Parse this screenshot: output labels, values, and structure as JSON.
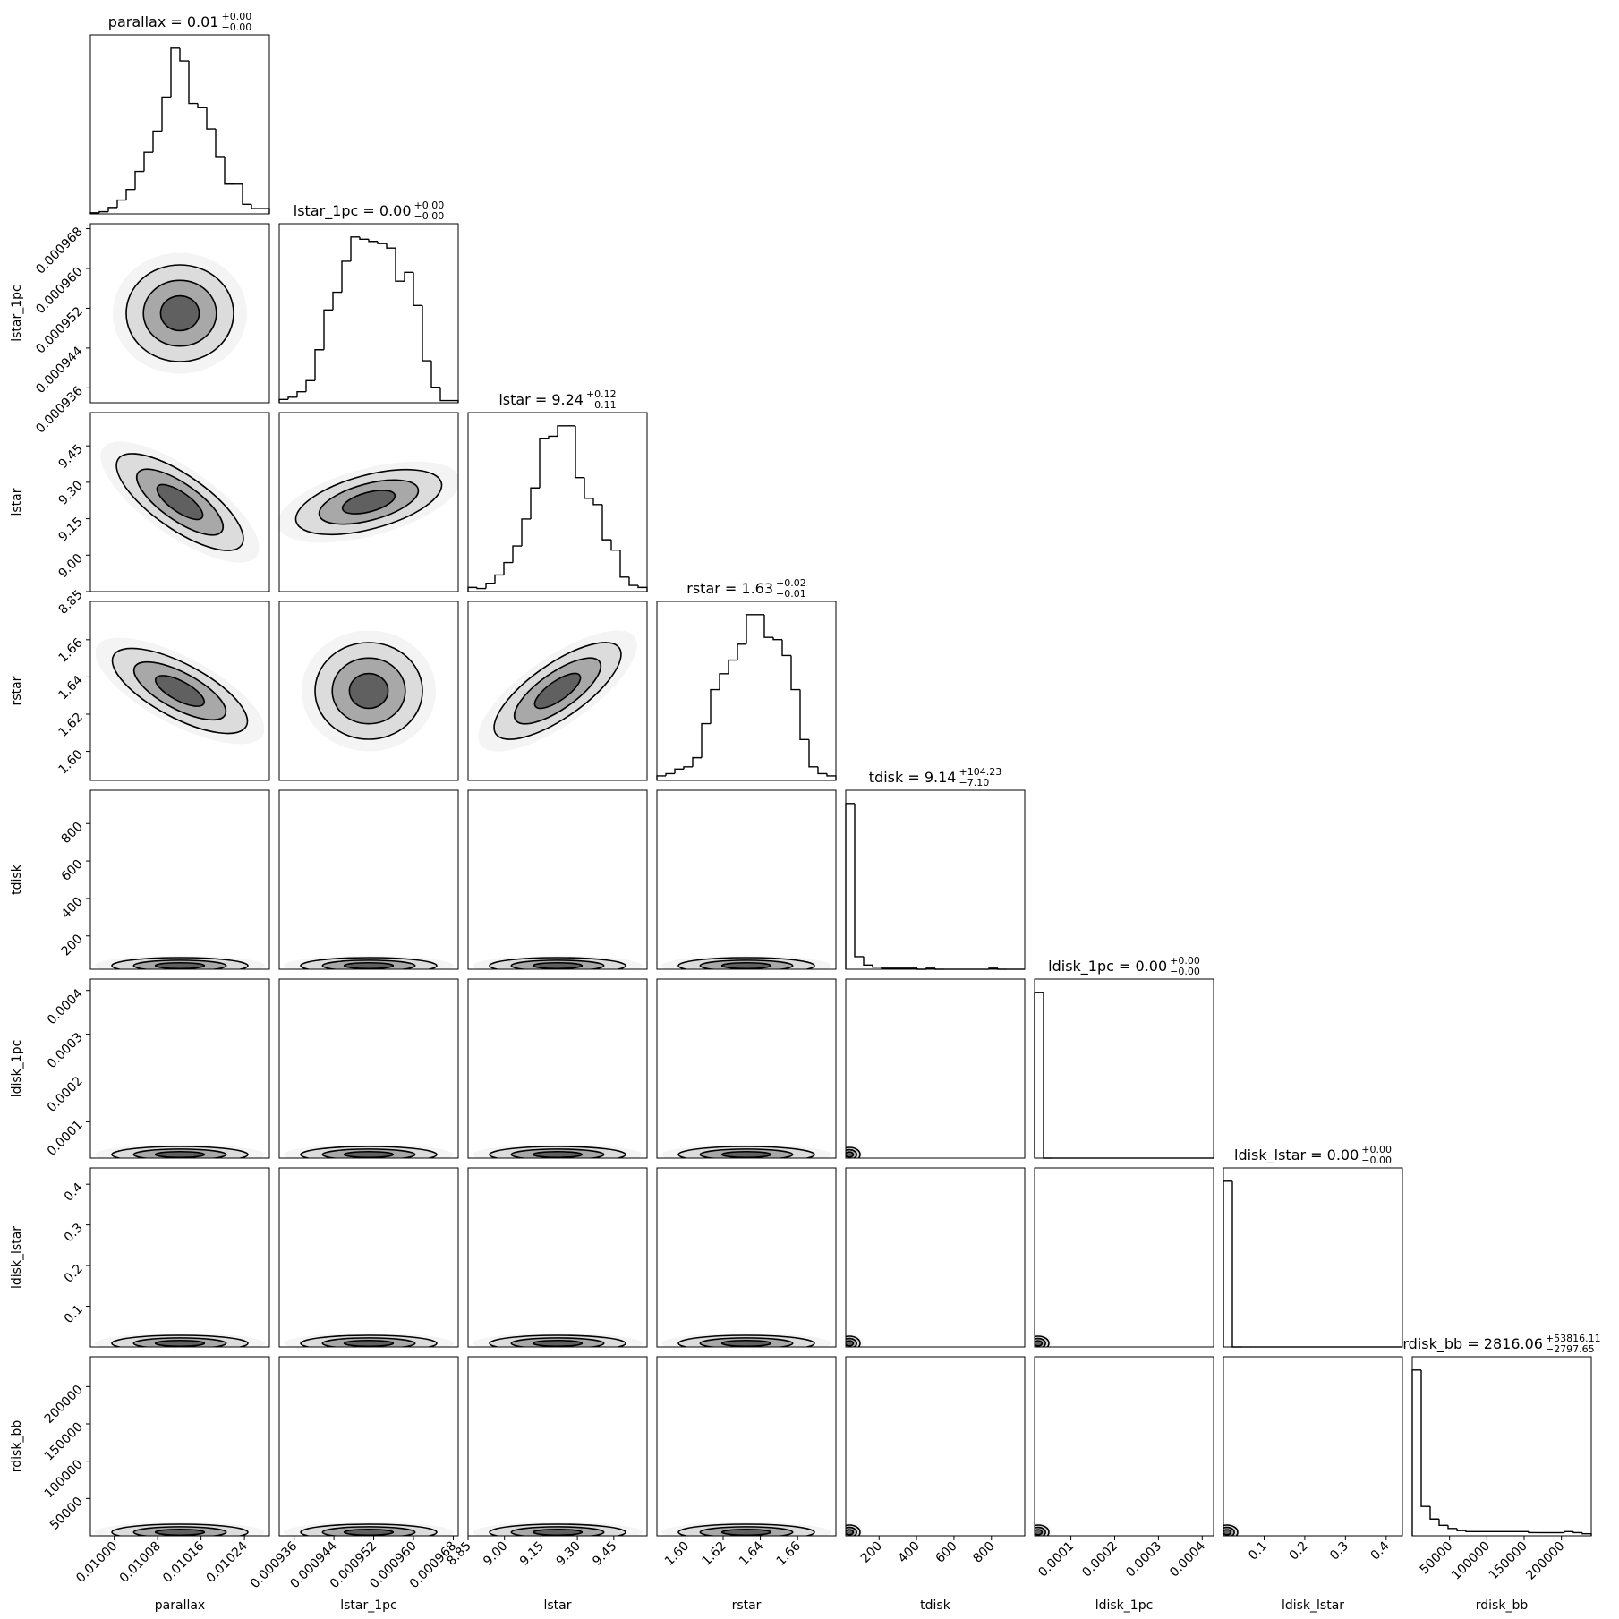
{
  "chart_data": {
    "type": "corner",
    "parameters": [
      {
        "name": "parallax",
        "title": "parallax = 0.01",
        "upper": "+0.00",
        "lower": "−0.00",
        "lim": [
          0.009956,
          0.010286
        ],
        "ticks": [
          {
            "value": 0.01,
            "label": "0.01000"
          },
          {
            "value": 0.01008,
            "label": "0.01008"
          },
          {
            "value": 0.01016,
            "label": "0.01016"
          },
          {
            "value": 0.01024,
            "label": "0.01024"
          }
        ],
        "counts": [
          1,
          2,
          6,
          13,
          23,
          40,
          58,
          78,
          110,
          156,
          144,
          104,
          100,
          80,
          54,
          28,
          28,
          9,
          5,
          5
        ]
      },
      {
        "name": "lstar_1pc",
        "title": "lstar_1pc = 0.00",
        "upper": "+0.00",
        "lower": "−0.00",
        "lim": [
          0.000933,
          0.000969
        ],
        "ticks": [
          0.000936,
          0.000944,
          0.000952,
          {
            "value": 0.00096,
            "label": "0.000960"
          },
          0.000968
        ],
        "counts": [
          3,
          5,
          10,
          20,
          48,
          84,
          100,
          128,
          150,
          148,
          146,
          144,
          140,
          110,
          118,
          88,
          38,
          14,
          2,
          2
        ]
      },
      {
        "name": "lstar",
        "title": "lstar = 9.24",
        "upper": "+0.12",
        "lower": "−0.11",
        "lim": [
          8.85,
          9.587
        ],
        "ticks": [
          8.85,
          {
            "value": 9.0,
            "label": "9.00"
          },
          9.15,
          {
            "value": 9.3,
            "label": "9.30"
          },
          9.45
        ],
        "counts": [
          4,
          3,
          8,
          16,
          28,
          44,
          70,
          100,
          148,
          150,
          160,
          160,
          110,
          90,
          84,
          50,
          40,
          14,
          6,
          4
        ]
      },
      {
        "name": "rstar",
        "title": "rstar = 1.63",
        "upper": "+0.02",
        "lower": "−0.01",
        "lim": [
          1.5844,
          1.6806
        ],
        "ticks": [
          {
            "value": 1.6,
            "label": "1.60"
          },
          1.62,
          1.64,
          1.66
        ],
        "counts": [
          4,
          6,
          10,
          12,
          20,
          50,
          80,
          94,
          106,
          120,
          146,
          146,
          126,
          124,
          110,
          80,
          36,
          12,
          6,
          4
        ]
      },
      {
        "name": "tdisk",
        "title": "tdisk = 9.14",
        "upper": "+104.23",
        "lower": "−7.10",
        "lim": [
          22,
          978
        ],
        "ticks": [
          200,
          400,
          600,
          800
        ],
        "counts": [
          158,
          12,
          4,
          2,
          1,
          1,
          1,
          1,
          0,
          1,
          0,
          0,
          0,
          0,
          0,
          0,
          1,
          0,
          0,
          0
        ]
      },
      {
        "name": "ldisk_1pc",
        "title": "ldisk_1pc = 0.00",
        "upper": "+0.00",
        "lower": "−0.00",
        "lim": [
          1.7e-05,
          0.000426
        ],
        "ticks": [
          0.0001,
          0.0002,
          0.0003,
          0.0004
        ],
        "counts": [
          158,
          0,
          0,
          0,
          0,
          0,
          0,
          0,
          0,
          0,
          0,
          0,
          0,
          0,
          0,
          0,
          0,
          0,
          0,
          0
        ]
      },
      {
        "name": "ldisk_lstar",
        "title": "ldisk_lstar = 0.00",
        "upper": "+0.00",
        "lower": "−0.00",
        "lim": [
          0.0,
          0.44
        ],
        "ticks": [
          0.1,
          0.2,
          0.3,
          0.4
        ],
        "counts": [
          158,
          0,
          0,
          0,
          0,
          0,
          0,
          0,
          0,
          0,
          0,
          0,
          0,
          0,
          0,
          0,
          0,
          0,
          0,
          0
        ]
      },
      {
        "name": "rdisk_bb",
        "title": "rdisk_bb = 2816.06",
        "upper": "+53816.11",
        "lower": "−2797.65",
        "lim": [
          0,
          240000
        ],
        "ticks": [
          50000,
          100000,
          150000,
          200000
        ],
        "counts": [
          158,
          28,
          16,
          10,
          7,
          5,
          4,
          4,
          4,
          4,
          4,
          4,
          4,
          3,
          3,
          3,
          3,
          4,
          3,
          2
        ]
      }
    ]
  }
}
